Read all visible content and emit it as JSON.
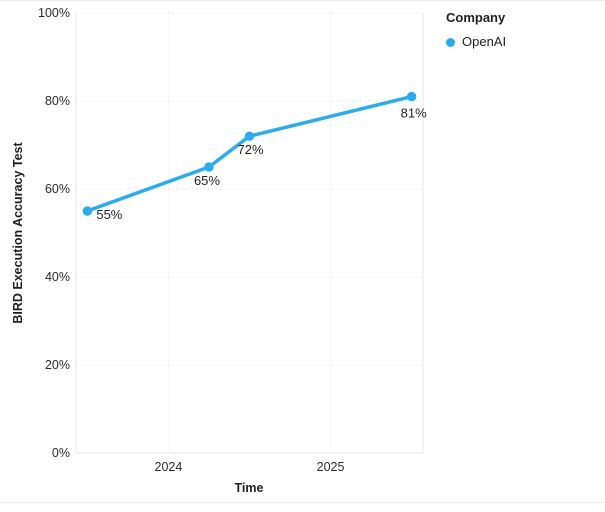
{
  "window": {
    "background": "#ffffff"
  },
  "chart_data": {
    "type": "line",
    "title": "",
    "xlabel": "Time",
    "ylabel": "BIRD Execution Accuracy Test",
    "x_domain": [
      2023.43,
      2025.57
    ],
    "y_domain": [
      0,
      100
    ],
    "xticks": [
      {
        "value": 2024,
        "label": "2024"
      },
      {
        "value": 2025,
        "label": "2025"
      }
    ],
    "yticks": [
      {
        "value": 0,
        "label": "0%"
      },
      {
        "value": 20,
        "label": "20%"
      },
      {
        "value": 40,
        "label": "40%"
      },
      {
        "value": 60,
        "label": "60%"
      },
      {
        "value": 80,
        "label": "80%"
      },
      {
        "value": 100,
        "label": "100%"
      }
    ],
    "grid": {
      "style": "dotted",
      "color": "#dcdcdc",
      "border_color": "#e4e4e4"
    },
    "legend": {
      "title": "Company",
      "position": "top-right",
      "entries": [
        {
          "label": "OpenAI",
          "color": "#2bacec"
        }
      ]
    },
    "series": [
      {
        "name": "OpenAI",
        "color": "#2bacec",
        "x": [
          2023.5,
          2024.25,
          2024.5,
          2025.5
        ],
        "y": [
          55,
          65,
          72,
          81
        ],
        "point_labels": [
          "55%",
          "65%",
          "72%",
          "81%"
        ],
        "label_offsets": [
          [
            9,
            8
          ],
          [
            -15,
            18
          ],
          [
            -12,
            18
          ],
          [
            -11,
            21
          ]
        ]
      }
    ],
    "text_color": "#262626"
  }
}
